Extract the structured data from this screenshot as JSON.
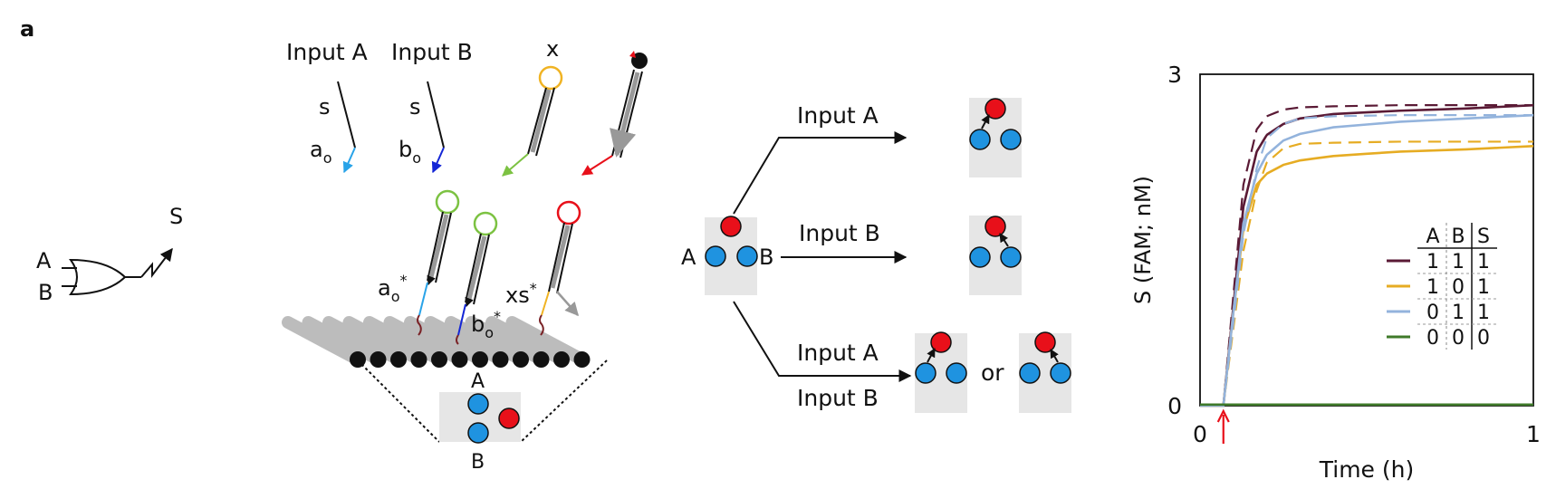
{
  "figure": {
    "panel_label": "a",
    "or_gate": {
      "input_a": "A",
      "input_b": "B",
      "output": "S"
    },
    "strands": {
      "input_a": "Input A",
      "input_b": "Input B",
      "s1": "s",
      "s2": "s",
      "ao": "a",
      "ao_sub": "o",
      "bo": "b",
      "bo_sub": "o",
      "x": "x"
    },
    "origami": {
      "ao_star": "a",
      "ao_star_sub": "o",
      "bo_star": "b",
      "bo_star_sub": "o",
      "xs_star": "xs",
      "star": "*",
      "zoom_a": "A",
      "zoom_b": "B"
    },
    "pathways": {
      "left_a": "A",
      "right_b": "B",
      "arrow1": "Input A",
      "arrow2": "Input B",
      "arrow3_top": "Input A",
      "arrow3_bottom": "Input B",
      "or_word": "or"
    },
    "colors": {
      "blue_dot": "#1f93e0",
      "red_dot": "#e8101a",
      "green_ring": "#7cc242",
      "yellow_ring": "#f0b323",
      "red_ring": "#e8101a",
      "cyan_tail": "#29a3e8",
      "navy_tail": "#1426d6"
    }
  },
  "chart_data": {
    "type": "line",
    "xlabel": "Time (h)",
    "ylabel": "S (FAM; nM)",
    "xlim": [
      0,
      1
    ],
    "ylim": [
      0,
      3
    ],
    "xticks": [
      "0",
      "1"
    ],
    "yticks": [
      "0",
      "3"
    ],
    "input_marker_time": 0.07,
    "series": [
      {
        "name": "1 1 1",
        "color": "#5a1a35",
        "x": [
          0,
          0.07,
          0.1,
          0.13,
          0.17,
          0.2,
          0.25,
          0.3,
          0.4,
          0.6,
          0.8,
          1.0
        ],
        "y_measured": [
          0,
          0,
          0.9,
          1.8,
          2.3,
          2.45,
          2.55,
          2.6,
          2.64,
          2.67,
          2.69,
          2.72
        ],
        "y_model": [
          0,
          0,
          1.0,
          2.0,
          2.5,
          2.62,
          2.68,
          2.7,
          2.71,
          2.72,
          2.72,
          2.72
        ]
      },
      {
        "name": "1 0 1",
        "color": "#e6ac23",
        "x": [
          0,
          0.07,
          0.1,
          0.13,
          0.17,
          0.2,
          0.25,
          0.3,
          0.4,
          0.6,
          0.8,
          1.0
        ],
        "y_measured": [
          0,
          0,
          0.85,
          1.6,
          2.0,
          2.1,
          2.18,
          2.22,
          2.26,
          2.3,
          2.32,
          2.35
        ],
        "y_model": [
          0,
          0,
          0.7,
          1.4,
          1.95,
          2.2,
          2.33,
          2.37,
          2.38,
          2.39,
          2.39,
          2.39
        ]
      },
      {
        "name": "0 1 1",
        "color": "#93b3dc",
        "x": [
          0,
          0.07,
          0.1,
          0.13,
          0.17,
          0.2,
          0.25,
          0.3,
          0.4,
          0.6,
          0.8,
          1.0
        ],
        "y_measured": [
          0,
          0,
          0.85,
          1.65,
          2.1,
          2.27,
          2.4,
          2.46,
          2.52,
          2.57,
          2.6,
          2.63
        ],
        "y_model": [
          0,
          0,
          0.75,
          1.55,
          2.15,
          2.42,
          2.55,
          2.6,
          2.62,
          2.63,
          2.63,
          2.63
        ]
      },
      {
        "name": "0 0 0",
        "color": "#3f7a2a",
        "x": [
          0,
          1.0
        ],
        "y_measured": [
          0.01,
          0.01
        ],
        "y_model": [
          0.01,
          0.01
        ]
      }
    ],
    "legend": {
      "placement": "right",
      "headers": [
        "A",
        "B",
        "S"
      ],
      "rows": [
        [
          "1",
          "1",
          "1"
        ],
        [
          "1",
          "0",
          "1"
        ],
        [
          "0",
          "1",
          "1"
        ],
        [
          "0",
          "0",
          "0"
        ]
      ]
    }
  }
}
